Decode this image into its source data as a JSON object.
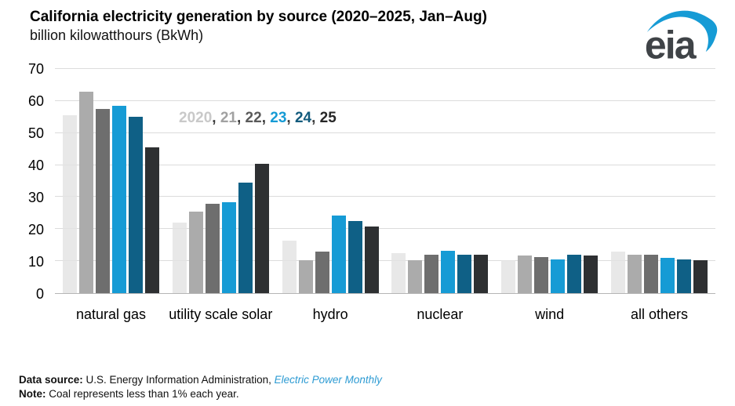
{
  "header": {
    "title": "California electricity generation by source (2020–2025, Jan–Aug)",
    "subtitle": "billion kilowatthours (BkWh)"
  },
  "logo": {
    "text": "eia"
  },
  "legend": {
    "separator": ", ",
    "separator_color": "#3a3a3a",
    "colors": [
      "#c9c9c9",
      "#a1a1a1",
      "#5a5a5a",
      "#169bd5",
      "#135b7d",
      "#262626"
    ]
  },
  "colors": {
    "grid": "#dcdcdc",
    "axis": "#b5b5b5",
    "link_blue": "#2d9bd3",
    "logo_gray": "#3f4347",
    "logo_blue": "#169bd5"
  },
  "chart_data": {
    "type": "bar",
    "title": "California electricity generation by source (2020–2025, Jan–Aug)",
    "ylabel": "billion kilowatthours (BkWh)",
    "xlabel": "",
    "categories": [
      "natural gas",
      "utility scale solar",
      "hydro",
      "nuclear",
      "wind",
      "all others"
    ],
    "series": [
      {
        "name": "2020",
        "color": "#e3e3e3",
        "values": [
          55.5,
          22.0,
          16.3,
          12.6,
          10.3,
          12.9
        ]
      },
      {
        "name": "21",
        "color": "#ababab",
        "values": [
          63.0,
          25.5,
          10.2,
          10.4,
          11.7,
          11.9
        ]
      },
      {
        "name": "22",
        "color": "#6e6e6e",
        "values": [
          57.5,
          28.0,
          12.9,
          12.0,
          11.3,
          12.1
        ]
      },
      {
        "name": "23",
        "color": "#169bd5",
        "values": [
          58.5,
          28.5,
          24.3,
          13.1,
          10.5,
          11.0
        ]
      },
      {
        "name": "24",
        "color": "#0f6086",
        "values": [
          55.0,
          34.5,
          22.6,
          11.9,
          12.0,
          10.6
        ]
      },
      {
        "name": "25",
        "color": "#2e3032",
        "values": [
          45.5,
          40.5,
          20.8,
          11.9,
          11.7,
          10.3
        ]
      }
    ],
    "ylim": [
      0,
      70
    ],
    "yticks": [
      0,
      10,
      20,
      30,
      40,
      50,
      60,
      70
    ],
    "grid": true,
    "legend_position": "top-left-inside"
  },
  "footer": {
    "data_source_label": "Data source:",
    "data_source_text": " U.S. Energy Information Administration, ",
    "data_source_link": "Electric Power Monthly",
    "note_label": "Note:",
    "note_text": " Coal represents less than 1% each year."
  }
}
